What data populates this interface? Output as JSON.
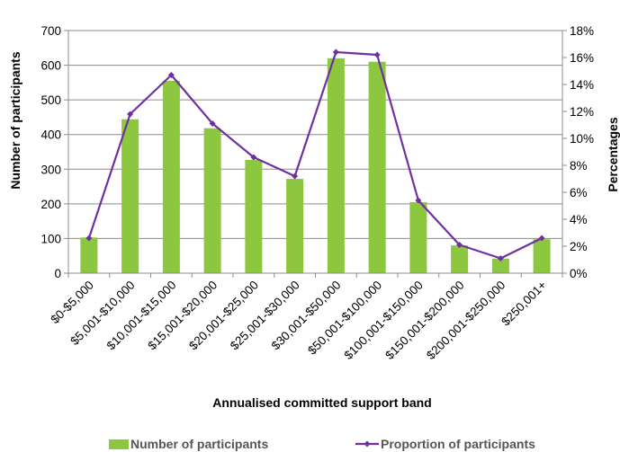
{
  "chart_data": {
    "type": "bar",
    "categories": [
      "$0-$5,000",
      "$5,001-$10,000",
      "$10,001-$15,000",
      "$15,001-$20,000",
      "$20,001-$25,000",
      "$25,001-$30,000",
      "$30,001-$50,000",
      "$50,001-$100,000",
      "$100,001-$150,000",
      "$150,001-$200,000",
      "$200,001-$250,000",
      "$250,001+"
    ],
    "series": [
      {
        "name": "Number of participants",
        "type": "bar",
        "axis": "left",
        "color": "#8DC63F",
        "values": [
          103,
          444,
          555,
          418,
          327,
          272,
          620,
          610,
          205,
          80,
          42,
          98
        ]
      },
      {
        "name": "Proportion of participants",
        "type": "line",
        "axis": "right",
        "color": "#7030A0",
        "values": [
          2.6,
          11.8,
          14.7,
          11.1,
          8.6,
          7.2,
          16.4,
          16.2,
          5.4,
          2.1,
          1.1,
          2.6
        ]
      }
    ],
    "xlabel": "Annualised committed support band",
    "ylabel": "Number of participants",
    "y2label": "Percentages",
    "ylim": [
      0,
      700
    ],
    "y2lim": [
      0,
      18
    ],
    "yticks": [
      "0",
      "100",
      "200",
      "300",
      "400",
      "500",
      "600",
      "700"
    ],
    "y2ticks": [
      "0%",
      "2%",
      "4%",
      "6%",
      "8%",
      "10%",
      "12%",
      "14%",
      "16%",
      "18%"
    ],
    "grid": true,
    "legend_position": "bottom"
  }
}
